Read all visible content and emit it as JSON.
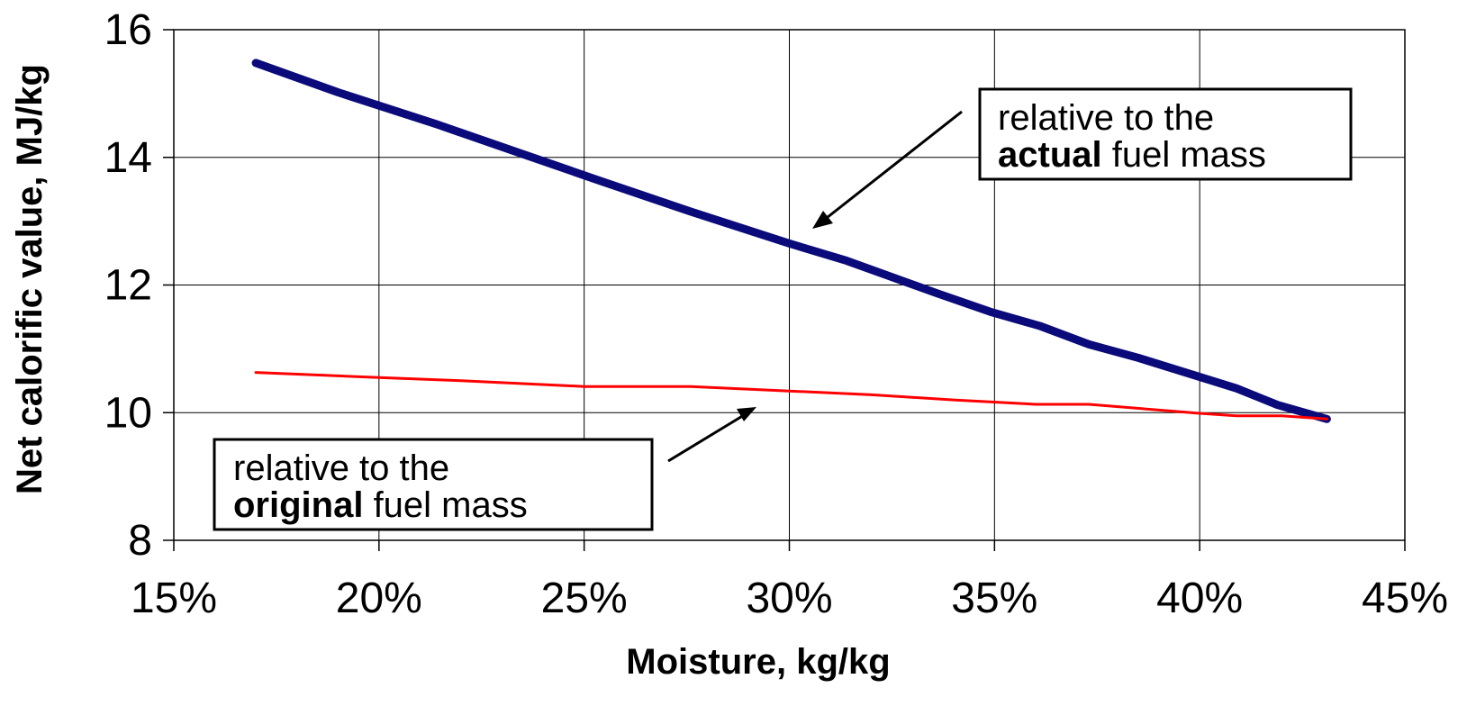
{
  "chart_data": {
    "type": "line",
    "title": "",
    "xlabel": "Moisture, kg/kg",
    "ylabel": "Net calorific value, MJ/kg",
    "xlim": [
      0.15,
      0.45
    ],
    "ylim": [
      8,
      16
    ],
    "x_ticks": [
      0.15,
      0.2,
      0.25,
      0.3,
      0.35,
      0.4,
      0.45
    ],
    "x_tick_labels": [
      "15%",
      "20%",
      "25%",
      "30%",
      "35%",
      "40%",
      "45%"
    ],
    "y_ticks": [
      8,
      10,
      12,
      14,
      16
    ],
    "y_tick_labels": [
      "8",
      "10",
      "12",
      "14",
      "16"
    ],
    "grid": true,
    "series": [
      {
        "color": "#0a0a7a",
        "x": [
          0.17,
          0.19,
          0.214,
          0.236,
          0.254,
          0.276,
          0.3,
          0.314,
          0.336,
          0.349,
          0.361,
          0.373,
          0.385,
          0.4,
          0.409,
          0.419,
          0.431
        ],
        "y": [
          15.48,
          15.02,
          14.52,
          14.03,
          13.63,
          13.15,
          12.65,
          12.38,
          11.87,
          11.58,
          11.36,
          11.07,
          10.86,
          10.56,
          10.38,
          10.12,
          9.9
        ]
      },
      {
        "color": "#ff0000",
        "x": [
          0.17,
          0.2,
          0.22,
          0.25,
          0.276,
          0.3,
          0.32,
          0.34,
          0.36,
          0.373,
          0.4,
          0.409,
          0.42,
          0.431
        ],
        "y": [
          10.63,
          10.55,
          10.5,
          10.41,
          10.41,
          10.34,
          10.28,
          10.2,
          10.13,
          10.13,
          9.99,
          9.95,
          9.95,
          9.9
        ]
      }
    ],
    "annotations": [
      {
        "line1": "relative to the",
        "bold": "actual",
        "rest": " fuel mass"
      },
      {
        "line1": "relative to the",
        "bold": "original",
        "rest": " fuel mass"
      }
    ]
  }
}
